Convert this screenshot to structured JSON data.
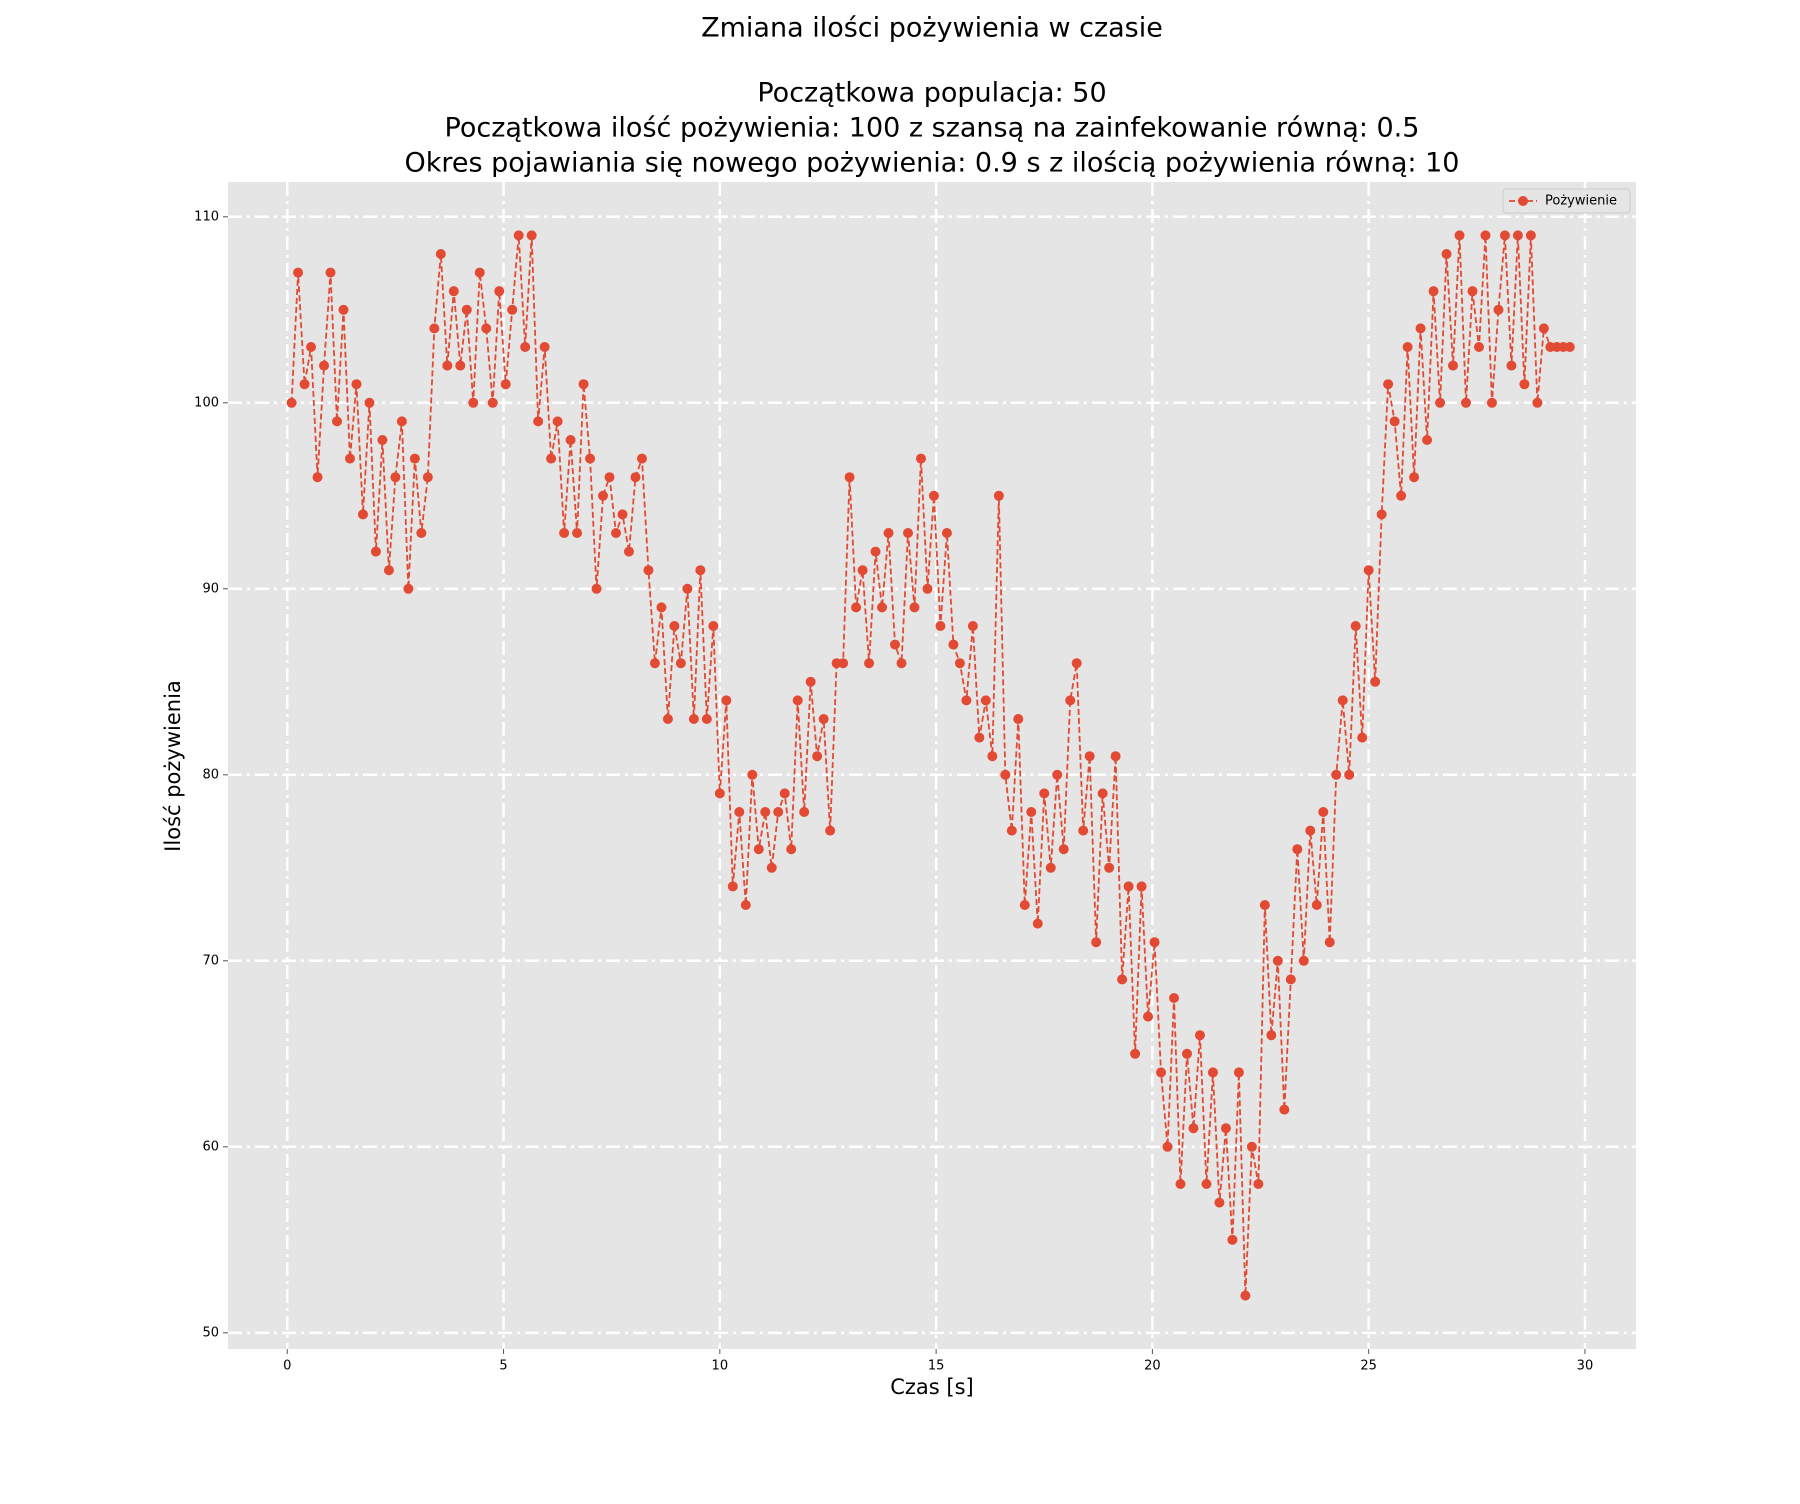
{
  "chart_data": {
    "type": "line",
    "title": "Zmiana ilości pożywienia w czasie",
    "subtitle": [
      "Początkowa populacja: 50",
      "Początkowa ilość pożywienia: 100 z szansą na zainfekowanie równą: 0.5",
      "Okres pojawiania się nowego pożywienia: 0.9 s z ilością pożywienia równą: 10"
    ],
    "x_label": "Czas [s]",
    "y_label": "Ilość pożywienia",
    "x": [
      0.1,
      0.25,
      0.4,
      0.55,
      0.7,
      0.85,
      1,
      1.15,
      1.3,
      1.45,
      1.6,
      1.75,
      1.9,
      2.05,
      2.2,
      2.35,
      2.5,
      2.65,
      2.8,
      2.95,
      3.1,
      3.25,
      3.4,
      3.55,
      3.7,
      3.85,
      4,
      4.15,
      4.3,
      4.45,
      4.6,
      4.75,
      4.9,
      5.05,
      5.2,
      5.35,
      5.5,
      5.65,
      5.8,
      5.95,
      6.1,
      6.25,
      6.4,
      6.55,
      6.7,
      6.85,
      7,
      7.15,
      7.3,
      7.45,
      7.6,
      7.75,
      7.9,
      8.05,
      8.2,
      8.35,
      8.5,
      8.65,
      8.8,
      8.95,
      9.1,
      9.25,
      9.4,
      9.55,
      9.7,
      9.85,
      10,
      10.15,
      10.3,
      10.45,
      10.6,
      10.75,
      10.9,
      11.05,
      11.2,
      11.35,
      11.5,
      11.65,
      11.8,
      11.95,
      12.1,
      12.25,
      12.4,
      12.55,
      12.7,
      12.85,
      13,
      13.15,
      13.3,
      13.45,
      13.6,
      13.75,
      13.9,
      14.05,
      14.2,
      14.35,
      14.5,
      14.65,
      14.8,
      14.95,
      15.1,
      15.25,
      15.4,
      15.55,
      15.7,
      15.85,
      16,
      16.15,
      16.3,
      16.45,
      16.6,
      16.75,
      16.9,
      17.05,
      17.2,
      17.35,
      17.5,
      17.65,
      17.8,
      17.95,
      18.1,
      18.25,
      18.4,
      18.55,
      18.7,
      18.85,
      19,
      19.15,
      19.3,
      19.45,
      19.6,
      19.75,
      19.9,
      20.05,
      20.2,
      20.35,
      20.5,
      20.65,
      20.8,
      20.95,
      21.1,
      21.25,
      21.4,
      21.55,
      21.7,
      21.85,
      22,
      22.15,
      22.3,
      22.45,
      22.6,
      22.75,
      22.9,
      23.05,
      23.2,
      23.35,
      23.5,
      23.65,
      23.8,
      23.95,
      24.1,
      24.25,
      24.4,
      24.55,
      24.7,
      24.85,
      25,
      25.15,
      25.3,
      25.45,
      25.6,
      25.75,
      25.9,
      26.05,
      26.2,
      26.35,
      26.5,
      26.65,
      26.8,
      26.95,
      27.1,
      27.25,
      27.4,
      27.55,
      27.7,
      27.85,
      28,
      28.15,
      28.3,
      28.45,
      28.6,
      28.75,
      28.9,
      29.05,
      29.2,
      29.35,
      29.5,
      29.65
    ],
    "series": [
      {
        "name": "Pożywienie",
        "color": "#E24A33",
        "values": [
          100,
          107,
          101,
          103,
          96,
          102,
          107,
          99,
          105,
          97,
          101,
          94,
          100,
          92,
          98,
          91,
          96,
          99,
          90,
          97,
          93,
          96,
          104,
          108,
          102,
          106,
          102,
          105,
          100,
          107,
          104,
          100,
          106,
          101,
          105,
          109,
          103,
          109,
          99,
          103,
          97,
          99,
          93,
          98,
          93,
          101,
          97,
          90,
          95,
          96,
          93,
          94,
          92,
          96,
          97,
          91,
          86,
          89,
          83,
          88,
          86,
          90,
          83,
          91,
          83,
          88,
          79,
          84,
          74,
          78,
          73,
          80,
          76,
          78,
          75,
          78,
          79,
          76,
          84,
          78,
          85,
          81,
          83,
          77,
          86,
          86,
          96,
          89,
          91,
          86,
          92,
          89,
          93,
          87,
          86,
          93,
          89,
          97,
          90,
          95,
          88,
          93,
          87,
          86,
          84,
          88,
          82,
          84,
          81,
          95,
          80,
          77,
          83,
          73,
          78,
          72,
          79,
          75,
          80,
          76,
          84,
          86,
          77,
          81,
          71,
          79,
          75,
          81,
          69,
          74,
          65,
          74,
          67,
          71,
          64,
          60,
          68,
          58,
          65,
          61,
          66,
          58,
          64,
          57,
          61,
          55,
          64,
          52,
          60,
          58,
          73,
          66,
          70,
          62,
          69,
          76,
          70,
          77,
          73,
          78,
          71,
          80,
          84,
          80,
          88,
          82,
          91,
          85,
          94,
          101,
          99,
          95,
          103,
          96,
          104,
          98,
          106,
          100,
          108,
          102,
          109,
          100,
          106,
          103,
          109,
          100,
          105,
          109,
          102,
          109,
          101,
          109,
          100,
          104,
          103,
          103,
          103,
          103
        ]
      }
    ],
    "xlim": [
      -1.37,
      31.18
    ],
    "ylim": [
      49.13,
      111.87
    ],
    "xticks": [
      0,
      5,
      10,
      15,
      20,
      25,
      30
    ],
    "yticks": [
      50,
      60,
      70,
      80,
      90,
      100,
      110
    ],
    "grid": true,
    "legend": "upper right"
  }
}
